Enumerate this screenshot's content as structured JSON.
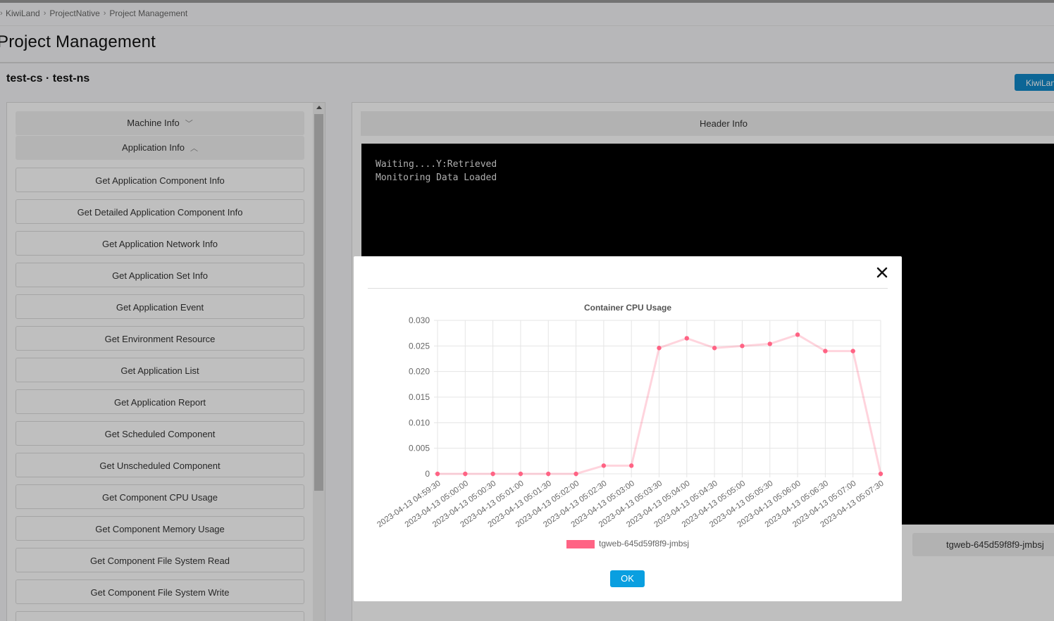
{
  "breadcrumb": {
    "items": [
      "KiwiLand",
      "ProjectNative",
      "Project Management"
    ]
  },
  "page": {
    "title": "Project Management",
    "context": "test-cs · test-ns",
    "top_right_button": "KiwiLand"
  },
  "left_panel": {
    "machine_info_label": "Machine Info",
    "application_info_label": "Application Info",
    "menu_items": [
      "Get Application Component Info",
      "Get Detailed Application Component Info",
      "Get Application Network Info",
      "Get Application Set Info",
      "Get Application Event",
      "Get Environment Resource",
      "Get Application List",
      "Get Application Report",
      "Get Scheduled Component",
      "Get Unscheduled Component",
      "Get Component CPU Usage",
      "Get Component Memory Usage",
      "Get Component File System Read",
      "Get Component File System Write"
    ]
  },
  "right_panel": {
    "header_label": "Header Info",
    "terminal_lines": [
      "Waiting....Y:Retrieved",
      "Monitoring Data Loaded"
    ],
    "pod_tab_label": "tgweb-645d59f8f9-jmbsj"
  },
  "modal": {
    "ok_label": "OK"
  },
  "chart_data": {
    "type": "line",
    "title": "Container CPU Usage",
    "xlabel": "",
    "ylabel": "",
    "ylim": [
      0,
      0.03
    ],
    "yticks": [
      "0",
      "0.005",
      "0.010",
      "0.015",
      "0.020",
      "0.025",
      "0.030"
    ],
    "grid": true,
    "legend_position": "bottom",
    "categories": [
      "2023-04-13 04:59:30",
      "2023-04-13 05:00:00",
      "2023-04-13 05:00:30",
      "2023-04-13 05:01:00",
      "2023-04-13 05:01:30",
      "2023-04-13 05:02:00",
      "2023-04-13 05:02:30",
      "2023-04-13 05:03:00",
      "2023-04-13 05:03:30",
      "2023-04-13 05:04:00",
      "2023-04-13 05:04:30",
      "2023-04-13 05:05:00",
      "2023-04-13 05:05:30",
      "2023-04-13 05:06:00",
      "2023-04-13 05:06:30",
      "2023-04-13 05:07:00",
      "2023-04-13 05:07:30"
    ],
    "series": [
      {
        "name": "tgweb-645d59f8f9-jmbsj",
        "color": "#ff6384",
        "values": [
          0,
          0,
          0,
          0,
          0,
          0,
          0.0016,
          0.0016,
          0.0246,
          0.0265,
          0.0246,
          0.025,
          0.0254,
          0.0272,
          0.024,
          0.024,
          0
        ]
      }
    ]
  }
}
